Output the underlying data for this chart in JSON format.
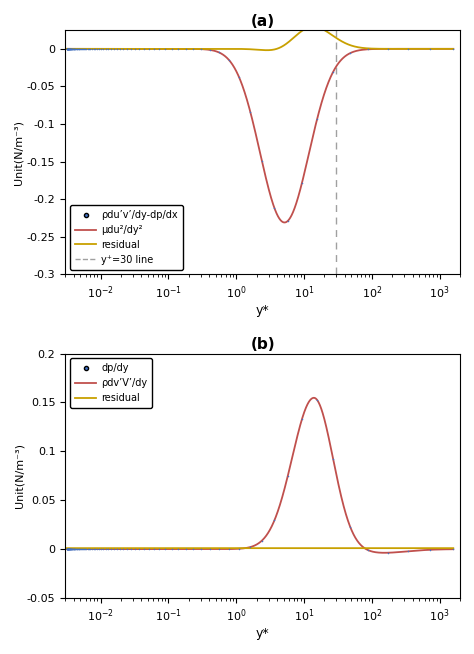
{
  "title_a": "(a)",
  "title_b": "(b)",
  "xlabel": "y*",
  "ylabel": "Unit(N/m⁻³)",
  "xlim": [
    0.003,
    2000
  ],
  "ylim_a": [
    -0.3,
    0.025
  ],
  "ylim_b": [
    -0.05,
    0.2
  ],
  "yplus30": 30,
  "legend_a": [
    "ρdu’v’/dy-dp/dx",
    "μdu²/dy²",
    "residual",
    "y⁺=30 line"
  ],
  "legend_b": [
    "dp/dy",
    "ρdv’V’/dy",
    "residual"
  ],
  "color_dots": "#4472C4",
  "color_orange": "#C0504D",
  "color_yellow": "#C8A000",
  "color_dashed": "#A0A0A0",
  "bg_color": "#FFFFFF"
}
